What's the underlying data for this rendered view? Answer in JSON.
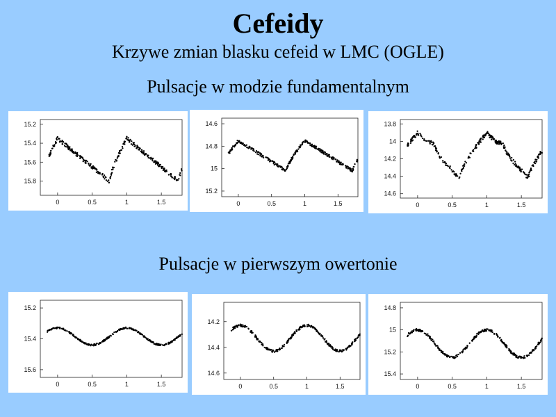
{
  "title": "Cefeidy",
  "subtitle": "Krzywe zmian blasku cefeid w LMC (OGLE)",
  "sections": [
    {
      "label": "Pulsacje w modzie fundamentalnym"
    },
    {
      "label": "Pulsacje w pierwszym owertonie"
    }
  ],
  "chart_data": [
    {
      "type": "scatter",
      "shape": "fundamental",
      "xlim": [
        -0.25,
        1.8
      ],
      "ylim": [
        15.95,
        15.15
      ],
      "y_inverted": true,
      "xticks": [
        0,
        0.5,
        1,
        1.5
      ],
      "xtick_labels": [
        "0",
        "0.5",
        "1",
        "1.5"
      ],
      "yticks": [
        15.2,
        15.4,
        15.6,
        15.8
      ],
      "ytick_labels": [
        "15.2",
        "15.4",
        "15.6",
        "15.8"
      ],
      "max_mag": 15.35,
      "min_mag": 15.8,
      "min_phase": 0.75,
      "bump_amp": 0
    },
    {
      "type": "scatter",
      "shape": "fundamental",
      "xlim": [
        -0.25,
        1.8
      ],
      "ylim": [
        15.25,
        14.55
      ],
      "y_inverted": true,
      "xticks": [
        0,
        0.5,
        1,
        1.5
      ],
      "xtick_labels": [
        "0",
        "0.5",
        "1",
        "1.5"
      ],
      "yticks": [
        14.6,
        14.8,
        15,
        15.2
      ],
      "ytick_labels": [
        "14.6",
        "14.8",
        "15",
        "15.2"
      ],
      "max_mag": 14.75,
      "min_mag": 15.02,
      "min_phase": 0.72,
      "bump_amp": 0
    },
    {
      "type": "scatter",
      "shape": "fundamental",
      "xlim": [
        -0.25,
        1.8
      ],
      "ylim": [
        14.65,
        13.75
      ],
      "y_inverted": true,
      "xticks": [
        0,
        0.5,
        1,
        1.5
      ],
      "xtick_labels": [
        "0",
        "0.5",
        "1",
        "1.5"
      ],
      "yticks": [
        13.8,
        14,
        14.2,
        14.4,
        14.6
      ],
      "ytick_labels": [
        "13.8",
        "14",
        "14.2",
        "14.4",
        "14.6"
      ],
      "max_mag": 13.9,
      "min_mag": 14.42,
      "min_phase": 0.6,
      "bump_amp": 0.12
    },
    {
      "type": "scatter",
      "shape": "overtone",
      "xlim": [
        -0.25,
        1.8
      ],
      "ylim": [
        15.65,
        15.15
      ],
      "y_inverted": true,
      "xticks": [
        0,
        0.5,
        1,
        1.5
      ],
      "xtick_labels": [
        "0",
        "0.5",
        "1",
        "1.5"
      ],
      "yticks": [
        15.2,
        15.4,
        15.6
      ],
      "ytick_labels": [
        "15.2",
        "15.4",
        "15.6"
      ],
      "max_mag": 15.33,
      "min_mag": 15.44,
      "min_phase": 0.5,
      "bump_amp": 0
    },
    {
      "type": "scatter",
      "shape": "overtone",
      "xlim": [
        -0.25,
        1.8
      ],
      "ylim": [
        14.65,
        14.05
      ],
      "y_inverted": true,
      "xticks": [
        0,
        0.5,
        1,
        1.5
      ],
      "xtick_labels": [
        "0",
        "0.5",
        "1",
        "1.5"
      ],
      "yticks": [
        14.2,
        14.4,
        14.6
      ],
      "ytick_labels": [
        "14.2",
        "14.4",
        "14.6"
      ],
      "max_mag": 14.23,
      "min_mag": 14.43,
      "min_phase": 0.5,
      "bump_amp": 0
    },
    {
      "type": "scatter",
      "shape": "overtone",
      "xlim": [
        -0.25,
        1.8
      ],
      "ylim": [
        15.45,
        14.75
      ],
      "y_inverted": true,
      "xticks": [
        0,
        0.5,
        1,
        1.5
      ],
      "xtick_labels": [
        "0",
        "0.5",
        "1",
        "1.5"
      ],
      "yticks": [
        14.8,
        15,
        15.2,
        15.4
      ],
      "ytick_labels": [
        "14.8",
        "15",
        "15.2",
        "15.4"
      ],
      "max_mag": 15.0,
      "min_mag": 15.25,
      "min_phase": 0.55,
      "bump_amp": 0
    }
  ]
}
